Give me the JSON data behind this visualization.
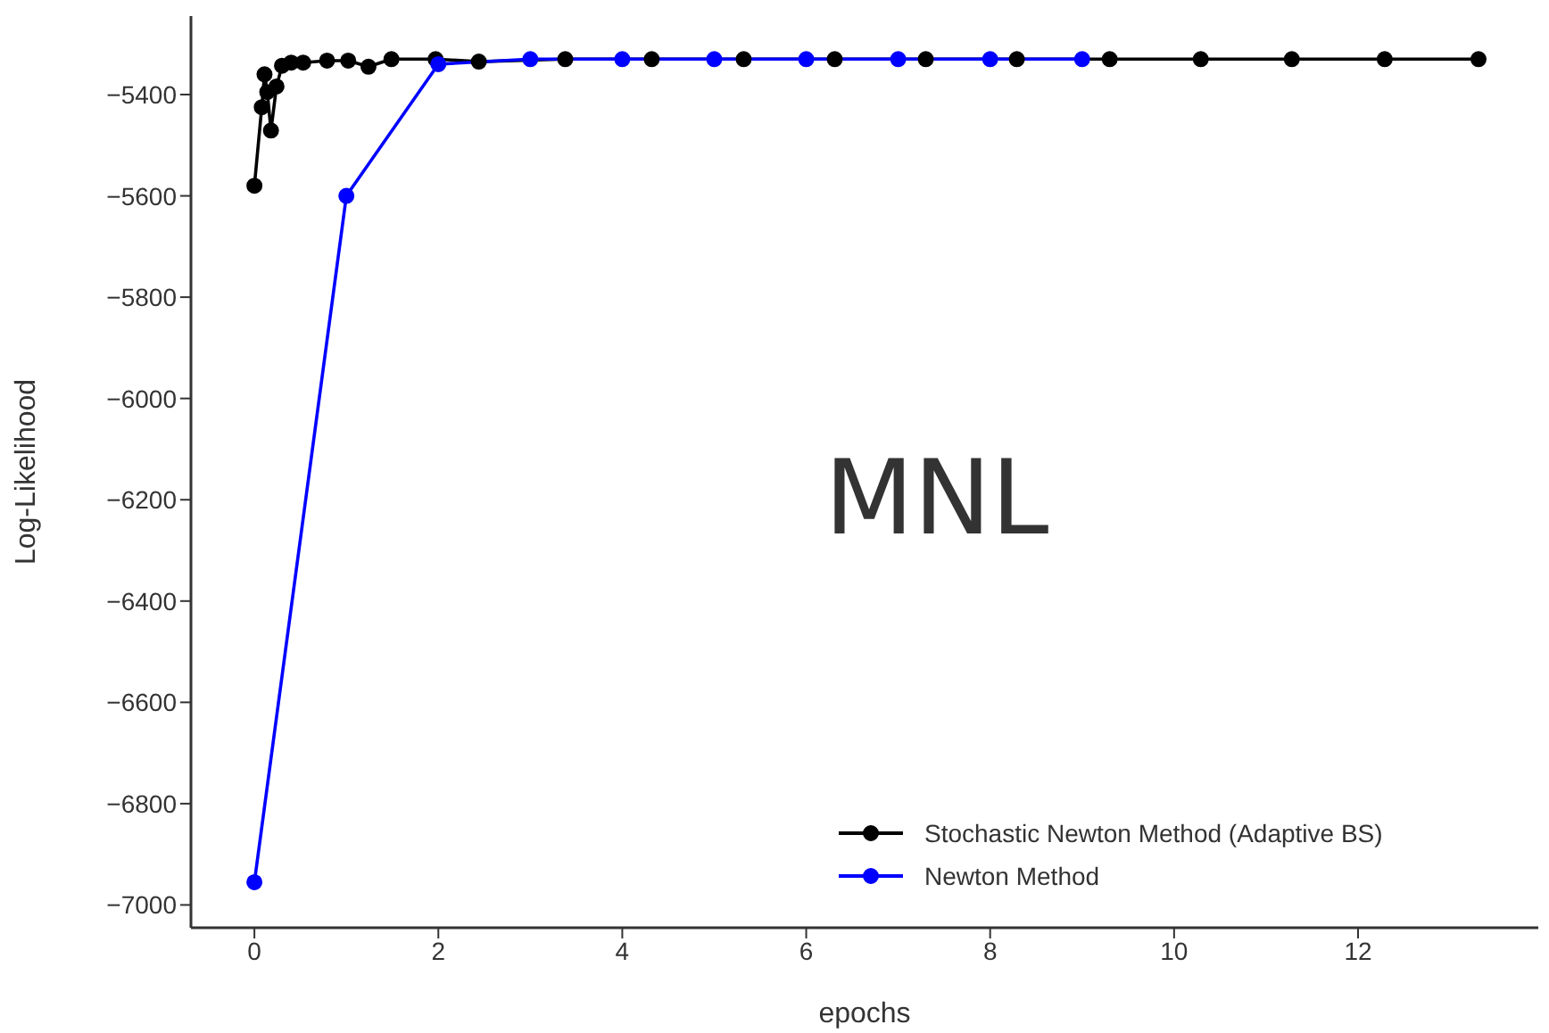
{
  "chart_data": {
    "type": "line",
    "xlabel": "epochs",
    "ylabel": "Log-Likelihood",
    "annotations": [
      "MNL"
    ],
    "xlim": [
      -0.69,
      13.96
    ],
    "xticks": [
      0,
      2,
      4,
      6,
      8,
      10,
      12
    ],
    "ylim": [
      -7045,
      -5245
    ],
    "yticks": [
      -7000,
      -6800,
      -6600,
      -6400,
      -6200,
      -6000,
      -5800,
      -5600,
      -5400
    ],
    "grid": false,
    "legend": "bottom right",
    "marker": "circle",
    "line_style": "solid",
    "series": [
      {
        "name": "Stochastic Newton Method (Adaptive BS)",
        "color": "#000000",
        "x": [
          0,
          0.08,
          0.11,
          0.14,
          0.18,
          0.24,
          0.3,
          0.4,
          0.53,
          0.79,
          1.02,
          1.24,
          1.49,
          1.97,
          2.44,
          3.38,
          4.32,
          5.32,
          6.31,
          7.3,
          8.29,
          9.3,
          10.29,
          11.28,
          12.29,
          13.31
        ],
        "values": [
          -5580,
          -5425,
          -5360,
          -5395,
          -5471,
          -5384,
          -5343,
          -5337,
          -5337,
          -5333,
          -5333,
          -5345,
          -5330,
          -5330,
          -5335,
          -5330,
          -5330,
          -5330,
          -5330,
          -5330,
          -5330,
          -5330,
          -5330,
          -5330,
          -5330,
          -5330
        ]
      },
      {
        "name": "Newton Method",
        "color": "#0000ff",
        "x": [
          0,
          1,
          2,
          3,
          4,
          5,
          6,
          7,
          8,
          9
        ],
        "values": [
          -6955,
          -5600,
          -5340,
          -5330,
          -5330,
          -5330,
          -5330,
          -5330,
          -5330,
          -5330
        ]
      }
    ]
  }
}
